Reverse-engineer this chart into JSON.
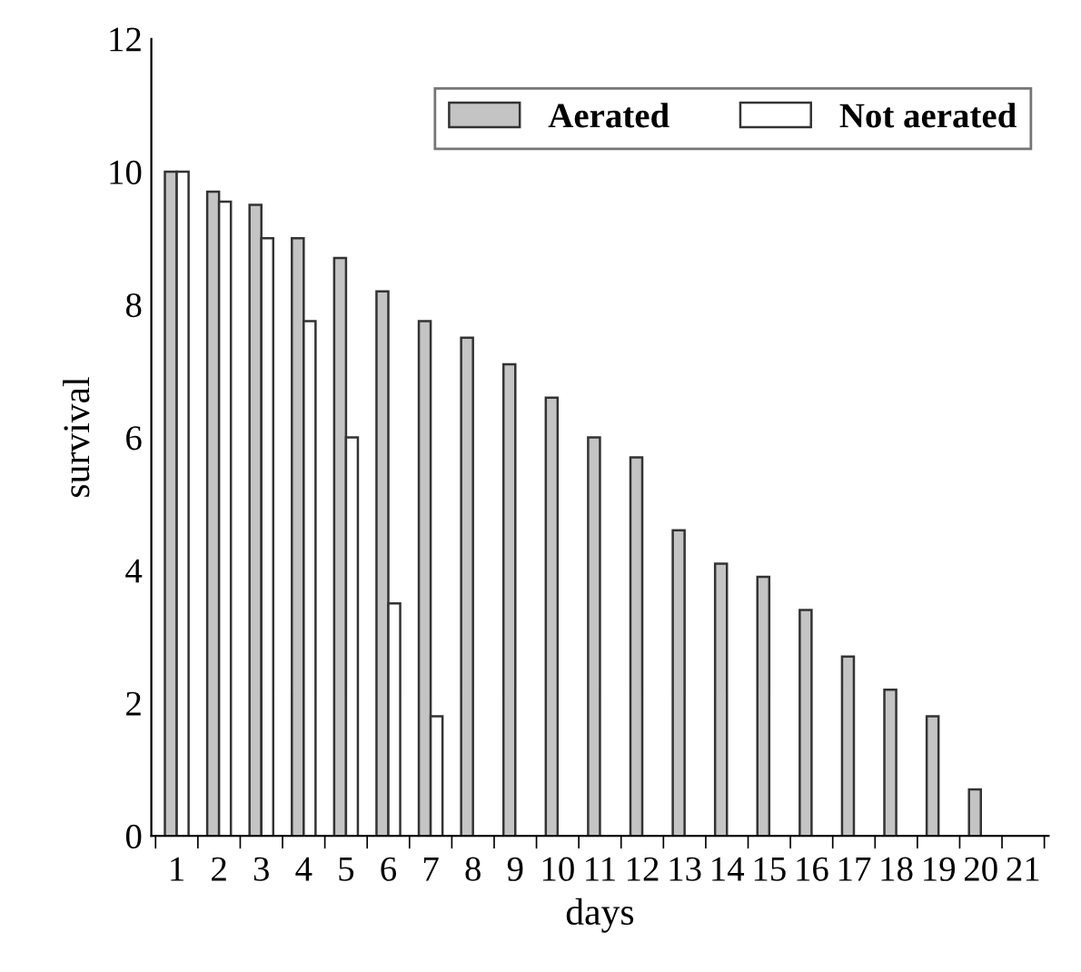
{
  "chart_data": {
    "type": "bar",
    "xlabel": "days",
    "ylabel": "survival",
    "categories": [
      "1",
      "2",
      "3",
      "4",
      "5",
      "6",
      "7",
      "8",
      "9",
      "10",
      "11",
      "12",
      "13",
      "14",
      "15",
      "16",
      "17",
      "18",
      "19",
      "20",
      "21"
    ],
    "series": [
      {
        "name": "Aerated",
        "color": "#c4c4c4",
        "values": [
          10,
          9.7,
          9.5,
          9.0,
          8.7,
          8.2,
          7.75,
          7.5,
          7.1,
          6.6,
          6.0,
          5.7,
          4.6,
          4.1,
          3.9,
          3.4,
          2.7,
          2.2,
          1.8,
          0.7,
          null
        ]
      },
      {
        "name": "Not aerated",
        "color": "#ffffff",
        "values": [
          10,
          9.55,
          9.0,
          7.75,
          6.0,
          3.5,
          1.8,
          null,
          null,
          null,
          null,
          null,
          null,
          null,
          null,
          null,
          null,
          null,
          null,
          null,
          null
        ]
      }
    ],
    "ylim": [
      0,
      12
    ],
    "yticks": [
      0,
      2,
      4,
      6,
      8,
      10,
      12
    ],
    "grid": false,
    "legend": "top right"
  }
}
